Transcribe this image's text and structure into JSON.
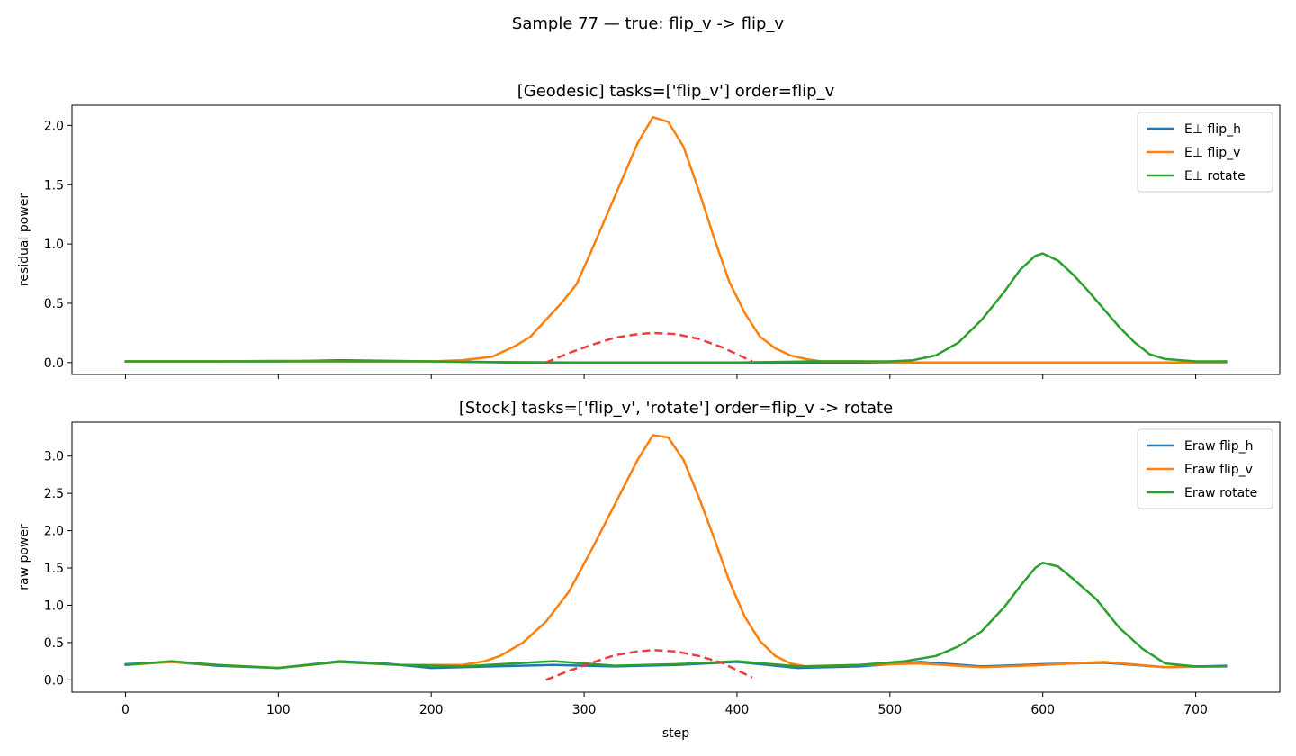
{
  "figure": {
    "suptitle": "Sample 77 — true: flip_v -> flip_v"
  },
  "colors": {
    "flip_h": "#1f77b4",
    "flip_v": "#ff7f0e",
    "rotate": "#2ca02c",
    "expected": "#ee3333"
  },
  "chart_data": [
    {
      "type": "line",
      "title": "[Geodesic] tasks=['flip_v'] order=flip_v",
      "xlabel": "",
      "ylabel": "residual power",
      "xlim": [
        -35,
        755
      ],
      "ylim": [
        -0.1,
        2.17
      ],
      "xticks": [
        0,
        100,
        200,
        300,
        400,
        500,
        600,
        700
      ],
      "xtick_labels_visible": false,
      "yticks": [
        0.0,
        0.5,
        1.0,
        1.5,
        2.0
      ],
      "ytick_labels": [
        "0.0",
        "0.5",
        "1.0",
        "1.5",
        "2.0"
      ],
      "grid": false,
      "legend_position": "top-right",
      "series": [
        {
          "name": "E⊥ flip_h",
          "color_key": "flip_h",
          "points": [
            [
              0,
              0.01
            ],
            [
              100,
              0.01
            ],
            [
              140,
              0.02
            ],
            [
              200,
              0.01
            ],
            [
              240,
              0.005
            ],
            [
              300,
              0.0
            ],
            [
              400,
              0.0
            ],
            [
              500,
              0.0
            ],
            [
              600,
              0.0
            ],
            [
              650,
              0.0
            ],
            [
              700,
              0.0
            ],
            [
              720,
              0.01
            ]
          ]
        },
        {
          "name": "E⊥ flip_v",
          "color_key": "flip_v",
          "points": [
            [
              0,
              0.01
            ],
            [
              60,
              0.01
            ],
            [
              100,
              0.015
            ],
            [
              150,
              0.01
            ],
            [
              200,
              0.01
            ],
            [
              220,
              0.02
            ],
            [
              240,
              0.05
            ],
            [
              255,
              0.14
            ],
            [
              265,
              0.22
            ],
            [
              275,
              0.36
            ],
            [
              285,
              0.5
            ],
            [
              295,
              0.66
            ],
            [
              305,
              0.95
            ],
            [
              315,
              1.25
            ],
            [
              325,
              1.55
            ],
            [
              335,
              1.85
            ],
            [
              345,
              2.07
            ],
            [
              355,
              2.03
            ],
            [
              365,
              1.82
            ],
            [
              375,
              1.45
            ],
            [
              385,
              1.05
            ],
            [
              395,
              0.68
            ],
            [
              405,
              0.42
            ],
            [
              415,
              0.22
            ],
            [
              425,
              0.12
            ],
            [
              435,
              0.06
            ],
            [
              445,
              0.03
            ],
            [
              455,
              0.01
            ],
            [
              465,
              0.01
            ],
            [
              480,
              0.01
            ],
            [
              500,
              0.0
            ],
            [
              550,
              0.0
            ],
            [
              600,
              0.0
            ],
            [
              650,
              0.0
            ],
            [
              700,
              0.0
            ],
            [
              720,
              0.0
            ]
          ]
        },
        {
          "name": "E⊥ rotate",
          "color_key": "rotate",
          "points": [
            [
              0,
              0.01
            ],
            [
              100,
              0.01
            ],
            [
              200,
              0.01
            ],
            [
              250,
              0.0
            ],
            [
              300,
              0.0
            ],
            [
              400,
              0.0
            ],
            [
              450,
              0.01
            ],
            [
              480,
              0.01
            ],
            [
              500,
              0.01
            ],
            [
              515,
              0.02
            ],
            [
              530,
              0.06
            ],
            [
              545,
              0.17
            ],
            [
              560,
              0.36
            ],
            [
              575,
              0.6
            ],
            [
              585,
              0.78
            ],
            [
              595,
              0.9
            ],
            [
              600,
              0.92
            ],
            [
              610,
              0.86
            ],
            [
              620,
              0.74
            ],
            [
              630,
              0.6
            ],
            [
              640,
              0.45
            ],
            [
              650,
              0.3
            ],
            [
              660,
              0.17
            ],
            [
              670,
              0.07
            ],
            [
              680,
              0.03
            ],
            [
              700,
              0.01
            ],
            [
              720,
              0.01
            ]
          ]
        }
      ],
      "expected_curve": {
        "style": "dashed",
        "points": [
          [
            275,
            0.0
          ],
          [
            290,
            0.08
          ],
          [
            305,
            0.15
          ],
          [
            320,
            0.21
          ],
          [
            335,
            0.24
          ],
          [
            345,
            0.25
          ],
          [
            360,
            0.24
          ],
          [
            375,
            0.2
          ],
          [
            390,
            0.13
          ],
          [
            400,
            0.07
          ],
          [
            410,
            0.01
          ]
        ]
      }
    },
    {
      "type": "line",
      "title": "[Stock] tasks=['flip_v', 'rotate'] order=flip_v -> rotate",
      "xlabel": "step",
      "ylabel": "raw power",
      "xlim": [
        -35,
        755
      ],
      "ylim": [
        -0.165,
        3.455
      ],
      "xticks": [
        0,
        100,
        200,
        300,
        400,
        500,
        600,
        700
      ],
      "xtick_labels": [
        "0",
        "100",
        "200",
        "300",
        "400",
        "500",
        "600",
        "700"
      ],
      "yticks": [
        0.0,
        0.5,
        1.0,
        1.5,
        2.0,
        2.5,
        3.0
      ],
      "ytick_labels": [
        "0.0",
        "0.5",
        "1.0",
        "1.5",
        "2.0",
        "2.5",
        "3.0"
      ],
      "grid": false,
      "legend_position": "top-right",
      "series": [
        {
          "name": "Eraw flip_h",
          "color_key": "flip_h",
          "points": [
            [
              0,
              0.21
            ],
            [
              30,
              0.24
            ],
            [
              60,
              0.19
            ],
            [
              100,
              0.16
            ],
            [
              140,
              0.25
            ],
            [
              170,
              0.22
            ],
            [
              200,
              0.16
            ],
            [
              240,
              0.18
            ],
            [
              280,
              0.2
            ],
            [
              320,
              0.18
            ],
            [
              360,
              0.2
            ],
            [
              400,
              0.24
            ],
            [
              440,
              0.16
            ],
            [
              480,
              0.18
            ],
            [
              520,
              0.24
            ],
            [
              560,
              0.18
            ],
            [
              600,
              0.21
            ],
            [
              640,
              0.23
            ],
            [
              680,
              0.17
            ],
            [
              720,
              0.19
            ]
          ]
        },
        {
          "name": "Eraw flip_v",
          "color_key": "flip_v",
          "points": [
            [
              0,
              0.2
            ],
            [
              30,
              0.24
            ],
            [
              60,
              0.2
            ],
            [
              100,
              0.16
            ],
            [
              140,
              0.24
            ],
            [
              180,
              0.2
            ],
            [
              220,
              0.2
            ],
            [
              235,
              0.25
            ],
            [
              245,
              0.32
            ],
            [
              260,
              0.5
            ],
            [
              275,
              0.78
            ],
            [
              290,
              1.18
            ],
            [
              305,
              1.75
            ],
            [
              320,
              2.35
            ],
            [
              335,
              2.95
            ],
            [
              345,
              3.28
            ],
            [
              355,
              3.25
            ],
            [
              365,
              2.95
            ],
            [
              375,
              2.45
            ],
            [
              385,
              1.9
            ],
            [
              395,
              1.32
            ],
            [
              405,
              0.85
            ],
            [
              415,
              0.52
            ],
            [
              425,
              0.32
            ],
            [
              435,
              0.22
            ],
            [
              445,
              0.18
            ],
            [
              480,
              0.2
            ],
            [
              520,
              0.22
            ],
            [
              560,
              0.17
            ],
            [
              600,
              0.2
            ],
            [
              640,
              0.24
            ],
            [
              680,
              0.17
            ],
            [
              720,
              0.18
            ]
          ]
        },
        {
          "name": "Eraw rotate",
          "color_key": "rotate",
          "points": [
            [
              0,
              0.2
            ],
            [
              30,
              0.25
            ],
            [
              60,
              0.2
            ],
            [
              100,
              0.16
            ],
            [
              140,
              0.24
            ],
            [
              180,
              0.2
            ],
            [
              220,
              0.18
            ],
            [
              280,
              0.25
            ],
            [
              320,
              0.19
            ],
            [
              360,
              0.21
            ],
            [
              400,
              0.25
            ],
            [
              440,
              0.18
            ],
            [
              480,
              0.2
            ],
            [
              510,
              0.25
            ],
            [
              530,
              0.32
            ],
            [
              545,
              0.45
            ],
            [
              560,
              0.65
            ],
            [
              575,
              0.98
            ],
            [
              585,
              1.25
            ],
            [
              595,
              1.5
            ],
            [
              600,
              1.57
            ],
            [
              610,
              1.52
            ],
            [
              620,
              1.35
            ],
            [
              635,
              1.08
            ],
            [
              650,
              0.7
            ],
            [
              665,
              0.42
            ],
            [
              680,
              0.22
            ],
            [
              700,
              0.18
            ],
            [
              720,
              0.18
            ]
          ]
        }
      ],
      "expected_curve": {
        "style": "dashed",
        "points": [
          [
            275,
            0.0
          ],
          [
            290,
            0.12
          ],
          [
            305,
            0.23
          ],
          [
            320,
            0.33
          ],
          [
            335,
            0.38
          ],
          [
            345,
            0.4
          ],
          [
            360,
            0.38
          ],
          [
            375,
            0.32
          ],
          [
            390,
            0.23
          ],
          [
            400,
            0.13
          ],
          [
            410,
            0.03
          ]
        ]
      }
    }
  ]
}
